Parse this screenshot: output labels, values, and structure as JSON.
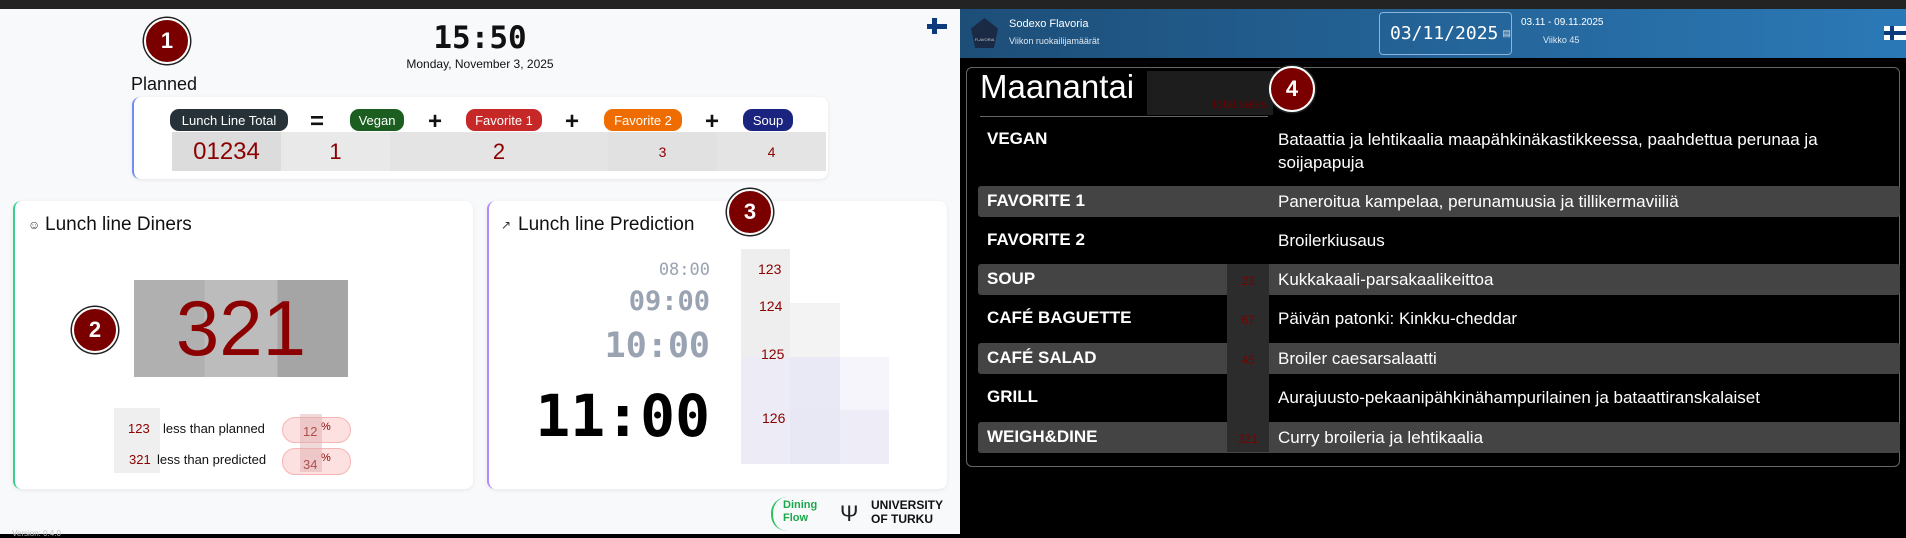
{
  "dashboard": {
    "time": "15:50",
    "date": "Monday, November 3, 2025",
    "planned": {
      "title": "Planned",
      "labels": {
        "total": "Lunch Line Total",
        "vegan": "Vegan",
        "fav1": "Favorite 1",
        "fav2": "Favorite 2",
        "soup": "Soup"
      },
      "operators": {
        "eq": "=",
        "plus": "+"
      },
      "values": {
        "total": "01234",
        "vegan": "1",
        "fav1": "2",
        "fav2": "3",
        "soup": "4"
      },
      "colors": {
        "total": "#263238",
        "vegan": "#1b5e20",
        "fav1": "#c62828",
        "fav2": "#ef6c00",
        "soup": "#1a237e"
      }
    },
    "diners": {
      "title": "Lunch line Diners",
      "count": "321",
      "rows": [
        {
          "value": "123",
          "label": "less than planned",
          "percent": "12",
          "unit": "%"
        },
        {
          "value": "321",
          "label": "less than predicted",
          "percent": "34",
          "unit": "%"
        }
      ]
    },
    "prediction": {
      "title": "Lunch line Prediction",
      "times": [
        "08:00",
        "09:00",
        "10:00",
        "11:00"
      ],
      "values": [
        "123",
        "124",
        "125",
        "126"
      ]
    },
    "logos": {
      "dining": "Dining Flow",
      "university": "UNIVERSITY OF TURKU"
    },
    "version": "Version: 0.4.0",
    "markers": [
      "1",
      "2",
      "3",
      "4"
    ]
  },
  "menu": {
    "header": {
      "brand": "Sodexo Flavoria",
      "subtitle": "Viikon ruokailijamäärät",
      "logo_text": "FLAVORIA",
      "date": "03/11/2025",
      "range": "03.11 - 09.11.2025",
      "week": "Viikko 45"
    },
    "day": "Maanantai",
    "total_sales": "total sales",
    "rows": [
      {
        "name": "VEGAN",
        "dish": "Bataattia ja lehtikaalia maapähkinäkastikkeessa, paahdettua perunaa ja soijapapuja",
        "count": ""
      },
      {
        "name": "FAVORITE 1",
        "dish": "Paneroitua kampelaa, perunamuusia ja tillikermaviiliä",
        "count": ""
      },
      {
        "name": "FAVORITE 2",
        "dish": "Broilerkiusaus",
        "count": ""
      },
      {
        "name": "SOUP",
        "dish": "Kukkakaali-parsakaalikeittoa",
        "count": "23"
      },
      {
        "name": "CAFÉ BAGUETTE",
        "dish": "Päivän patonki: Kinkku-cheddar",
        "count": "67"
      },
      {
        "name": "CAFÉ SALAD",
        "dish": "Broiler caesarsalaatti",
        "count": "45"
      },
      {
        "name": "GRILL",
        "dish": "Aurajuusto-pekaanipähkinähampurilainen ja bataattiranskalaiset",
        "count": ""
      },
      {
        "name": "WEIGH&DINE",
        "dish": "Curry broileria ja lehtikaalia",
        "count": "321"
      }
    ]
  }
}
